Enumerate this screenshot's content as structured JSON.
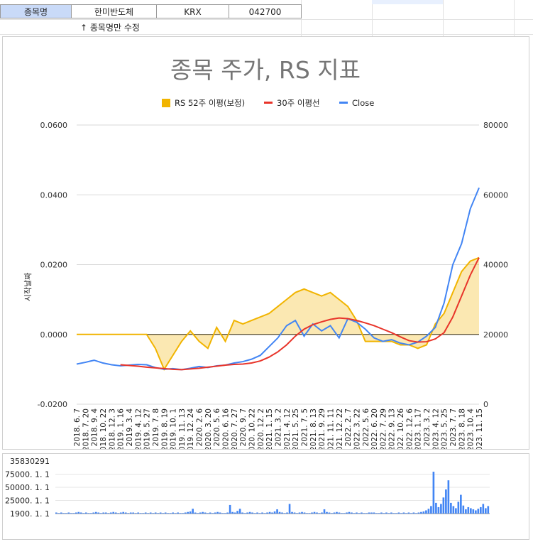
{
  "sheet": {
    "label_cell": "종목명",
    "name_cell": "한미반도체",
    "market_cell": "KRX",
    "code_cell": "042700",
    "hint": "↑ 종목명만 수정",
    "label_cell_bg": "#c9daf8"
  },
  "chart_data": [
    {
      "type": "line",
      "title": "종목 주가, RS 지표",
      "ylabel": "시작날짜",
      "ylim_left": [
        -0.02,
        0.06
      ],
      "ylim_right": [
        0,
        80000
      ],
      "left_ticks": [
        "0.0600",
        "0.0400",
        "0.0200",
        "0.0000",
        "-0.0200"
      ],
      "right_ticks": [
        "80000",
        "60000",
        "40000",
        "20000",
        "0"
      ],
      "x_ticks": [
        "2018. 6. 7",
        "2018. 7. 20",
        "2018. 9. 4",
        "2018. 10. 22",
        "2018. 12. 3",
        "2019. 1. 16",
        "2019. 3. 4",
        "2019. 4. 12",
        "2019. 5. 27",
        "2019. 7. 8",
        "2019. 8. 19",
        "2019. 10. 1",
        "2019. 11. 13",
        "2019. 12. 24",
        "2020. 2. 6",
        "2020. 3. 20",
        "2020. 5. 6",
        "2020. 6. 16",
        "2020. 7. 27",
        "2020. 9. 7",
        "2020. 10. 22",
        "2020. 12. 2",
        "2021. 1. 15",
        "2021. 3. 2",
        "2021. 4. 12",
        "2021. 5. 25",
        "2021. 7. 5",
        "2021. 8. 13",
        "2021. 9. 29",
        "2021. 11. 11",
        "2021. 12. 22",
        "2022. 2. 7",
        "2022. 3. 22",
        "2022. 5. 6",
        "2022. 6. 20",
        "2022. 7. 29",
        "2022. 9. 13",
        "2022. 10. 26",
        "2022. 12. 6",
        "2023. 1. 17",
        "2023. 3. 2",
        "2023. 4. 12",
        "2023. 5. 25",
        "2023. 7. 7",
        "2023. 8. 18",
        "2023. 10. 4",
        "2023. 11. 15"
      ],
      "legend_position": "top",
      "series": [
        {
          "name": "RS 52주 이평(보정)",
          "color": "#f1b400",
          "axis": "left",
          "values": [
            0,
            0,
            0,
            0,
            0,
            0,
            0,
            0,
            0,
            -0.004,
            -0.01,
            -0.006,
            -0.002,
            0.001,
            -0.002,
            -0.004,
            0.002,
            -0.002,
            0.004,
            0.003,
            0.004,
            0.005,
            0.006,
            0.008,
            0.01,
            0.012,
            0.013,
            0.012,
            0.011,
            0.012,
            0.01,
            0.008,
            0.004,
            -0.002,
            -0.002,
            -0.002,
            -0.002,
            -0.003,
            -0.003,
            -0.004,
            -0.003,
            0.003,
            0.006,
            0.012,
            0.018,
            0.021,
            0.022
          ]
        },
        {
          "name": "30주 이평선",
          "color": "#e8342a",
          "axis": "right",
          "values": [
            null,
            null,
            null,
            null,
            null,
            11300,
            11100,
            10900,
            10600,
            10400,
            10200,
            10000,
            9900,
            10100,
            10300,
            10600,
            10900,
            11200,
            11400,
            11500,
            11800,
            12400,
            13500,
            15000,
            17000,
            19500,
            21500,
            22800,
            23600,
            24300,
            24700,
            24500,
            24000,
            23300,
            22500,
            21500,
            20500,
            19300,
            18200,
            17800,
            17900,
            18700,
            20500,
            25000,
            31000,
            37000,
            42000
          ]
        },
        {
          "name": "Close",
          "color": "#4285f4",
          "axis": "right",
          "values": [
            11500,
            12000,
            12600,
            11800,
            11300,
            11000,
            11200,
            11400,
            11300,
            10500,
            10000,
            10200,
            9900,
            10300,
            10800,
            10500,
            11000,
            11200,
            11800,
            12200,
            12900,
            14000,
            16500,
            19000,
            22500,
            24000,
            19500,
            23000,
            21000,
            22500,
            19000,
            24500,
            23500,
            21500,
            19000,
            18000,
            18500,
            17500,
            17000,
            17800,
            19500,
            22000,
            29000,
            40000,
            46000,
            56000,
            62000
          ]
        }
      ]
    },
    {
      "type": "bar",
      "title": "",
      "y_ticks": [
        "35830291",
        "75000. 1. 1",
        "50000. 1. 1",
        "25000. 1. 1",
        "1900. 1. 1"
      ],
      "series_color": "#4285f4",
      "values": [
        2,
        1,
        2,
        1,
        1,
        2,
        1,
        1,
        2,
        3,
        2,
        1,
        2,
        1,
        1,
        2,
        3,
        2,
        1,
        2,
        2,
        1,
        2,
        3,
        2,
        1,
        2,
        3,
        2,
        1,
        2,
        2,
        1,
        2,
        1,
        1,
        2,
        1,
        2,
        1,
        2,
        1,
        2,
        1,
        2,
        1,
        1,
        2,
        1,
        2,
        1,
        1,
        2,
        3,
        4,
        9,
        2,
        1,
        2,
        3,
        2,
        1,
        2,
        1,
        2,
        3,
        2,
        1,
        1,
        2,
        16,
        3,
        2,
        5,
        9,
        2,
        1,
        2,
        3,
        2,
        1,
        2,
        1,
        2,
        1,
        2,
        3,
        2,
        4,
        8,
        3,
        2,
        1,
        2,
        18,
        3,
        2,
        1,
        2,
        3,
        2,
        1,
        1,
        2,
        3,
        2,
        1,
        2,
        8,
        3,
        2,
        1,
        2,
        3,
        2,
        1,
        1,
        2,
        3,
        2,
        1,
        2,
        1,
        2,
        1,
        1,
        2,
        2,
        2,
        1,
        1,
        2,
        1,
        2,
        1,
        2,
        1,
        1,
        2,
        1,
        2,
        1,
        2,
        1,
        2,
        1,
        2,
        3,
        4,
        6,
        9,
        14,
        78,
        20,
        12,
        18,
        30,
        45,
        62,
        20,
        14,
        10,
        22,
        35,
        15,
        8,
        12,
        10,
        8,
        6,
        9,
        12,
        18,
        10,
        14
      ]
    }
  ]
}
